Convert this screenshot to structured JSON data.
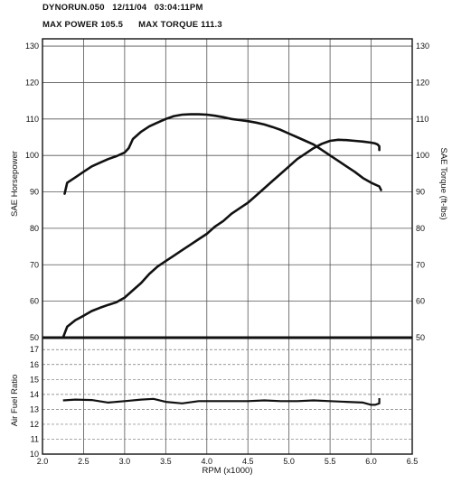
{
  "header": {
    "line1": "DYNORUN.050   12/11/04   03:04:11PM",
    "line2": "MAX POWER 105.5      MAX TORQUE 111.3"
  },
  "chart_data": [
    {
      "type": "line",
      "panel": "top",
      "xlabel": "RPM (x1000)",
      "ylabel_left": "SAE Horsepower",
      "ylabel_right": "SAE Torque (ft-lbs)",
      "xlim": [
        2.0,
        6.5
      ],
      "ylim": [
        50,
        132
      ],
      "y_ticks": [
        50,
        60,
        70,
        80,
        90,
        100,
        110,
        120,
        130
      ],
      "x_ticks": [
        "2.0",
        "2.5",
        "3.0",
        "3.5",
        "4.0",
        "4.5",
        "5.0",
        "5.5",
        "6.0",
        "6.5"
      ],
      "grid": true,
      "series": [
        {
          "name": "SAE Horsepower",
          "x": [
            2.25,
            2.3,
            2.4,
            2.5,
            2.6,
            2.7,
            2.8,
            2.9,
            3.0,
            3.1,
            3.2,
            3.3,
            3.4,
            3.5,
            3.6,
            3.7,
            3.8,
            3.9,
            4.0,
            4.1,
            4.2,
            4.3,
            4.4,
            4.5,
            4.6,
            4.7,
            4.8,
            4.9,
            5.0,
            5.1,
            5.2,
            5.3,
            5.4,
            5.5,
            5.6,
            5.7,
            5.8,
            5.9,
            6.0,
            6.05,
            6.08,
            6.1,
            6.1
          ],
          "values": [
            50.0,
            53.0,
            54.8,
            56.0,
            57.3,
            58.2,
            59.0,
            59.7,
            61.0,
            63.0,
            65.0,
            67.5,
            69.5,
            71.0,
            72.5,
            74.0,
            75.5,
            77.0,
            78.5,
            80.5,
            82.0,
            84.0,
            85.5,
            87.0,
            89.0,
            91.0,
            93.0,
            95.0,
            97.0,
            99.0,
            100.5,
            102.0,
            103.2,
            104.0,
            104.3,
            104.2,
            104.0,
            103.8,
            103.5,
            103.3,
            103.0,
            102.5,
            101.5
          ]
        },
        {
          "name": "SAE Torque (ft-lbs)",
          "x": [
            2.27,
            2.3,
            2.4,
            2.5,
            2.6,
            2.7,
            2.8,
            2.9,
            3.0,
            3.05,
            3.1,
            3.2,
            3.3,
            3.4,
            3.5,
            3.6,
            3.7,
            3.8,
            3.9,
            4.0,
            4.1,
            4.2,
            4.3,
            4.4,
            4.5,
            4.6,
            4.7,
            4.8,
            4.9,
            5.0,
            5.1,
            5.2,
            5.3,
            5.4,
            5.5,
            5.6,
            5.7,
            5.8,
            5.9,
            6.0,
            6.1,
            6.12
          ],
          "values": [
            89.5,
            92.5,
            94.0,
            95.5,
            97.0,
            98.0,
            99.0,
            99.8,
            100.8,
            102.0,
            104.5,
            106.5,
            108.0,
            109.0,
            110.0,
            110.8,
            111.2,
            111.3,
            111.3,
            111.2,
            110.9,
            110.5,
            110.0,
            109.7,
            109.4,
            109.0,
            108.5,
            107.8,
            107.0,
            106.0,
            105.0,
            104.0,
            103.0,
            101.5,
            100.0,
            98.5,
            97.0,
            95.5,
            93.8,
            92.5,
            91.5,
            90.5
          ]
        }
      ]
    },
    {
      "type": "line",
      "panel": "bottom",
      "ylabel": "Air Fuel Ratio",
      "xlabel": "RPM (x1000)",
      "xlim": [
        2.0,
        6.5
      ],
      "ylim": [
        10,
        17.8
      ],
      "y_ticks": [
        10,
        11,
        12,
        13,
        14,
        15,
        16,
        17
      ],
      "grid": true,
      "series": [
        {
          "name": "Air Fuel Ratio",
          "x": [
            2.25,
            2.4,
            2.6,
            2.8,
            3.0,
            3.2,
            3.35,
            3.5,
            3.7,
            3.9,
            4.1,
            4.3,
            4.5,
            4.7,
            4.9,
            5.1,
            5.3,
            5.5,
            5.7,
            5.9,
            6.0,
            6.05,
            6.1,
            6.1
          ],
          "values": [
            13.6,
            13.65,
            13.62,
            13.45,
            13.55,
            13.65,
            13.7,
            13.5,
            13.4,
            13.55,
            13.55,
            13.55,
            13.55,
            13.6,
            13.55,
            13.55,
            13.6,
            13.55,
            13.5,
            13.45,
            13.3,
            13.3,
            13.4,
            13.75
          ]
        }
      ]
    }
  ]
}
